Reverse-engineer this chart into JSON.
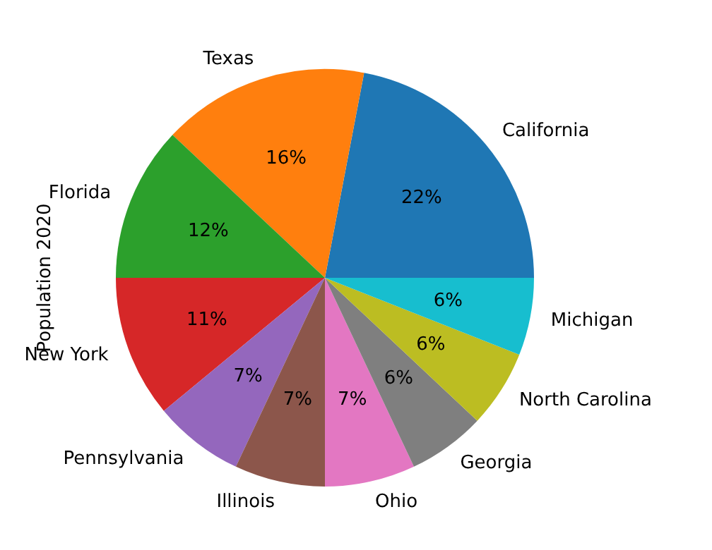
{
  "chart_data": {
    "type": "pie",
    "ylabel": "Population 2020",
    "categories": [
      "California",
      "Texas",
      "Florida",
      "New York",
      "Pennsylvania",
      "Illinois",
      "Ohio",
      "Georgia",
      "North Carolina",
      "Michigan"
    ],
    "values": [
      22,
      16,
      12,
      11,
      7,
      7,
      7,
      6,
      6,
      6
    ],
    "value_labels": [
      "22%",
      "16%",
      "12%",
      "11%",
      "7%",
      "7%",
      "7%",
      "6%",
      "6%",
      "6%"
    ],
    "colors": [
      "#1f77b4",
      "#ff7f0e",
      "#2ca02c",
      "#d62728",
      "#9467bd",
      "#8c564b",
      "#e377c2",
      "#7f7f7f",
      "#bcbd22",
      "#17becf"
    ]
  }
}
